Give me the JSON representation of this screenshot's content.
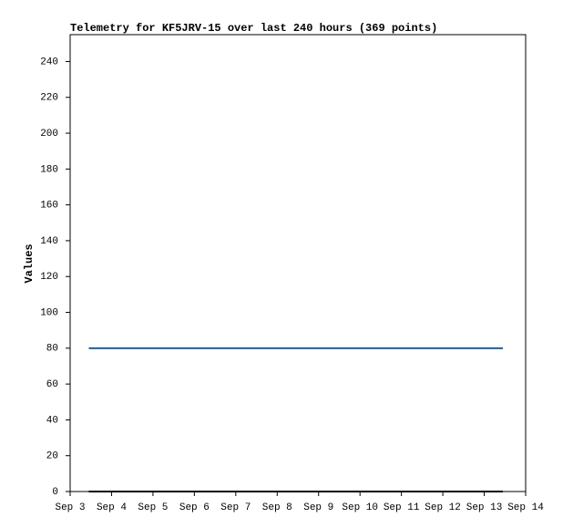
{
  "chart_data": {
    "type": "line",
    "title": "Telemetry for KF5JRV-15 over last 240 hours (369 points)",
    "y_label": "Values",
    "x": [
      3.45,
      13.45
    ],
    "series": [
      {
        "color": "#1a5fa0",
        "values": [
          80,
          80
        ]
      },
      {
        "color": "#000000",
        "values": [
          0,
          0
        ]
      }
    ],
    "xlim": [
      3,
      14
    ],
    "xticks": [
      {
        "value": 3,
        "label": "Sep 3"
      },
      {
        "value": 4,
        "label": "Sep 4"
      },
      {
        "value": 5,
        "label": "Sep 5"
      },
      {
        "value": 6,
        "label": "Sep 6"
      },
      {
        "value": 7,
        "label": "Sep 7"
      },
      {
        "value": 8,
        "label": "Sep 8"
      },
      {
        "value": 9,
        "label": "Sep 9"
      },
      {
        "value": 10,
        "label": "Sep 10"
      },
      {
        "value": 11,
        "label": "Sep 11"
      },
      {
        "value": 12,
        "label": "Sep 12"
      },
      {
        "value": 13,
        "label": "Sep 13"
      },
      {
        "value": 14,
        "label": "Sep 14"
      }
    ],
    "ylim": [
      0,
      255
    ],
    "yticks": [
      0,
      20,
      40,
      60,
      80,
      100,
      120,
      140,
      160,
      180,
      200,
      220,
      240
    ]
  }
}
